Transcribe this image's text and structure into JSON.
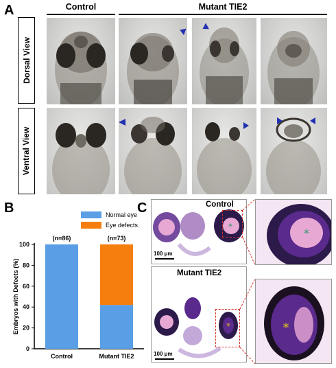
{
  "panel_a": {
    "letter": "A",
    "header_control": "Control",
    "header_mutant": "Mutant TIE2",
    "row_labels": [
      "Dorsal View",
      "Ventral View"
    ]
  },
  "panel_b": {
    "letter": "B",
    "legend": [
      "Normal eye",
      "Eye defects"
    ],
    "n_labels": [
      "(n=86)",
      "(n=73)"
    ]
  },
  "panel_c": {
    "letter": "C",
    "label_control": "Control",
    "label_mutant": "Mutant TIE2",
    "scale_label": "100 μm"
  },
  "colors": {
    "normal": "#5a9ee6",
    "defect": "#f57e0f",
    "arrow": "#2030b0",
    "dash": "#d8312a",
    "stain_purple": "#5a2a8c",
    "stain_pink": "#e8a8d4"
  },
  "chart_data": {
    "type": "bar",
    "stacked": true,
    "categories": [
      "Control",
      "Mutant TIE2"
    ],
    "series": [
      {
        "name": "Normal eye",
        "values": [
          100,
          42
        ]
      },
      {
        "name": "Eye defects",
        "values": [
          0,
          58
        ]
      }
    ],
    "ylabel": "Embryos with Defects (%)",
    "ylim": [
      0,
      100
    ],
    "yticks": [
      0,
      20,
      40,
      60,
      80,
      100
    ],
    "annotations": [
      "(n=86)",
      "(n=73)"
    ]
  }
}
